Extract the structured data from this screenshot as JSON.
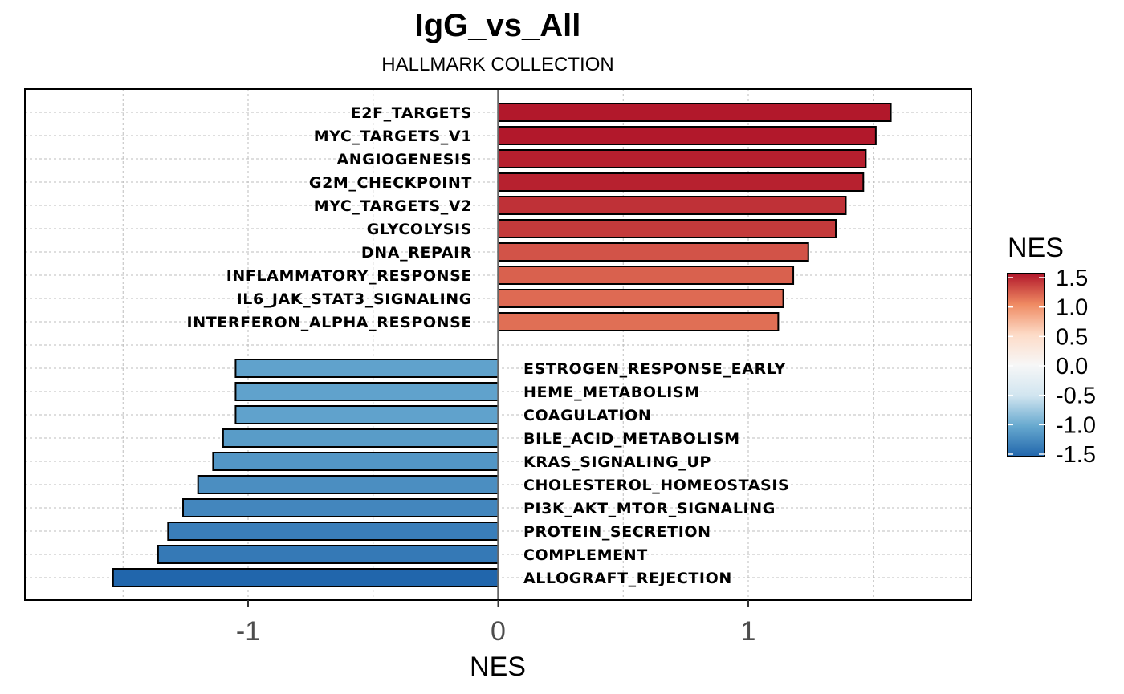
{
  "chart_data": {
    "type": "bar",
    "orientation": "horizontal",
    "title": "IgG_vs_All",
    "subtitle": "HALLMARK COLLECTION",
    "xlabel": "NES",
    "ylabel": "",
    "xlim": [
      -1.9,
      1.9
    ],
    "x_ticks": [
      -1,
      0,
      1
    ],
    "x_tick_labels": [
      "-1",
      "0",
      "1"
    ],
    "grid": true,
    "categories": [
      "E2F_TARGETS",
      "MYC_TARGETS_V1",
      "ANGIOGENESIS",
      "G2M_CHECKPOINT",
      "MYC_TARGETS_V2",
      "GLYCOLYSIS",
      "DNA_REPAIR",
      "INFLAMMATORY_RESPONSE",
      "IL6_JAK_STAT3_SIGNALING",
      "INTERFERON_ALPHA_RESPONSE",
      "ESTROGEN_RESPONSE_EARLY",
      "HEME_METABOLISM",
      "COAGULATION",
      "BILE_ACID_METABOLISM",
      "KRAS_SIGNALING_UP",
      "CHOLESTEROL_HOMEOSTASIS",
      "PI3K_AKT_MTOR_SIGNALING",
      "PROTEIN_SECRETION",
      "COMPLEMENT",
      "ALLOGRAFT_REJECTION"
    ],
    "values": [
      1.57,
      1.51,
      1.47,
      1.46,
      1.39,
      1.35,
      1.24,
      1.18,
      1.14,
      1.12,
      -1.05,
      -1.05,
      -1.05,
      -1.1,
      -1.14,
      -1.2,
      -1.26,
      -1.32,
      -1.36,
      -1.54
    ],
    "legend": {
      "title": "NES",
      "placement": "right",
      "range": [
        -1.5,
        1.5
      ],
      "ticks": [
        1.5,
        1.0,
        0.5,
        0.0,
        -0.5,
        -1.0,
        -1.5
      ],
      "tick_labels": [
        "1.5",
        "1.0",
        "0.5",
        "0.0",
        "-0.5",
        "-1.0",
        "-1.5"
      ]
    },
    "colors": {
      "high": "#b2182b",
      "mid_high": "#ef8a62",
      "mid_pos": "#fddbc7",
      "zero": "#f7f7f7",
      "mid_neg": "#d1e5f0",
      "mid_low": "#67a9cf",
      "low": "#2166ac",
      "bar_outline": "#000000",
      "zero_line": "#666666",
      "grid": "#bdbdbd"
    }
  }
}
